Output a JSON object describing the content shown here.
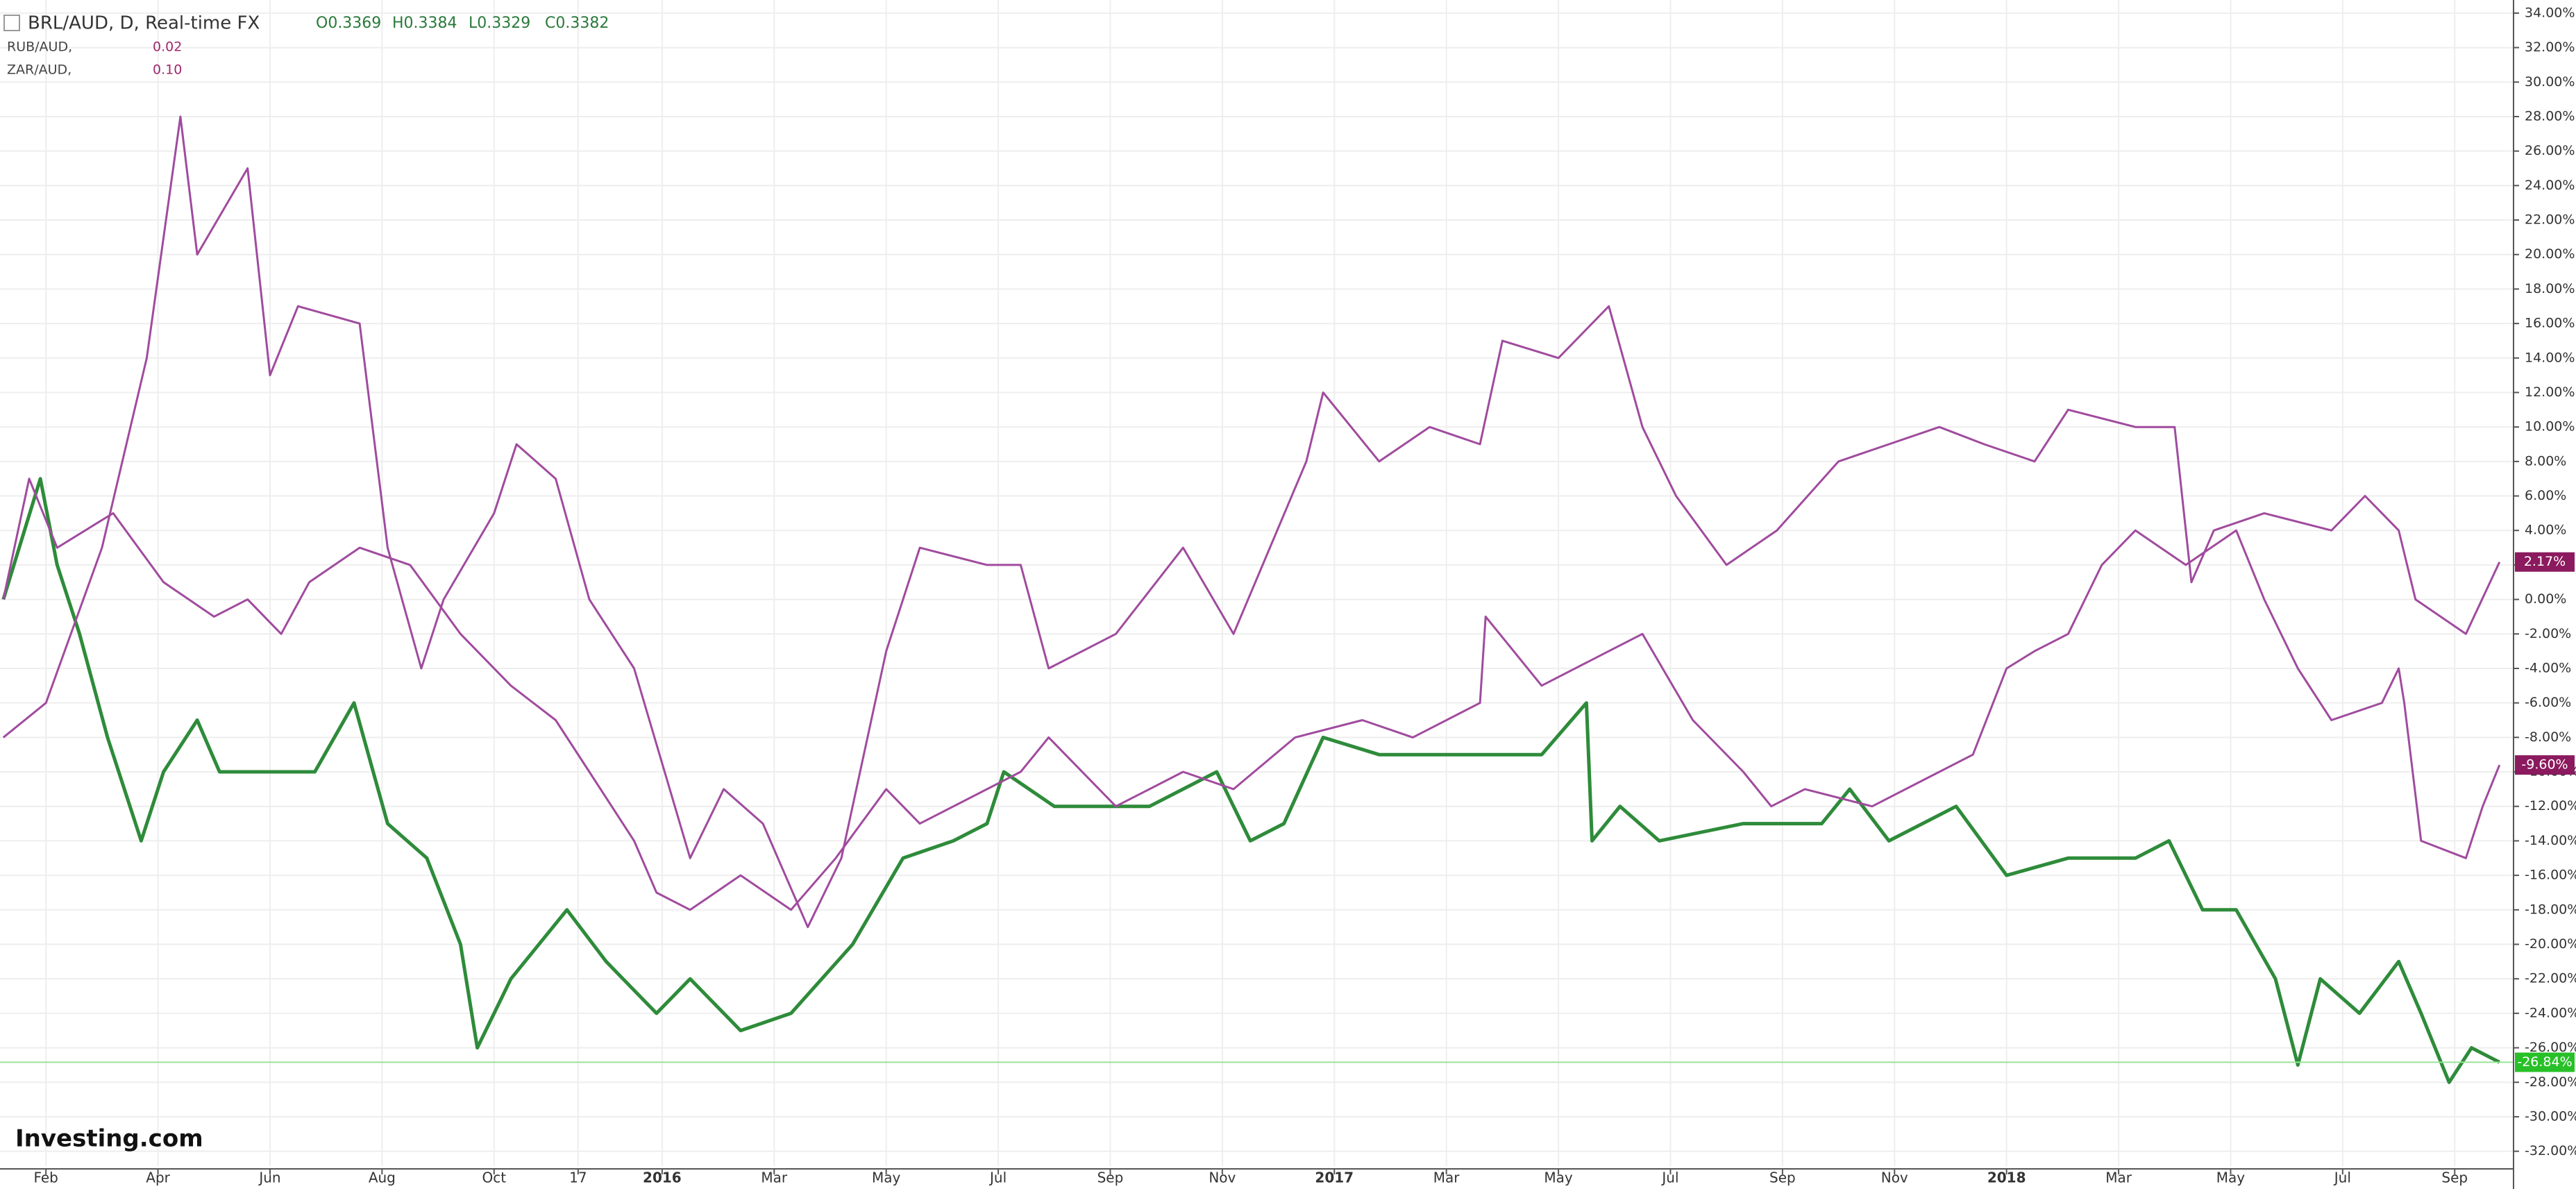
{
  "chart_data": {
    "type": "line",
    "title": "BRL/AUD, D, Real-time FX",
    "ohlc": [
      "O0.3369",
      "H0.3384",
      "L0.3329",
      "C0.3382"
    ],
    "logo": "Investing.com",
    "xlim": [
      0.18,
      45.05
    ],
    "xticks": [
      {
        "value": 1,
        "label": "Feb"
      },
      {
        "value": 3,
        "label": "Apr"
      },
      {
        "value": 5,
        "label": "Jun"
      },
      {
        "value": 7,
        "label": "Aug"
      },
      {
        "value": 9,
        "label": "Oct"
      },
      {
        "value": 10.5,
        "label": "17"
      },
      {
        "value": 12,
        "label": "2016"
      },
      {
        "value": 14,
        "label": "Mar"
      },
      {
        "value": 16,
        "label": "May"
      },
      {
        "value": 18,
        "label": "Jul"
      },
      {
        "value": 20,
        "label": "Sep"
      },
      {
        "value": 22,
        "label": "Nov"
      },
      {
        "value": 24,
        "label": "2017"
      },
      {
        "value": 26,
        "label": "Mar"
      },
      {
        "value": 28,
        "label": "May"
      },
      {
        "value": 30,
        "label": "Jul"
      },
      {
        "value": 32,
        "label": "Sep"
      },
      {
        "value": 34,
        "label": "Nov"
      },
      {
        "value": 36,
        "label": "2018"
      },
      {
        "value": 38,
        "label": "Mar"
      },
      {
        "value": 40,
        "label": "May"
      },
      {
        "value": 42,
        "label": "Jul"
      },
      {
        "value": 44,
        "label": "Sep"
      }
    ],
    "ylim": [
      -32.86,
      34.76
    ],
    "yticks": [
      {
        "value": -32,
        "label": "-32.00%"
      },
      {
        "value": -30,
        "label": "-30.00%"
      },
      {
        "value": -28,
        "label": "-28.00%"
      },
      {
        "value": -26,
        "label": "-26.00%"
      },
      {
        "value": -24,
        "label": "-24.00%"
      },
      {
        "value": -22,
        "label": "-22.00%"
      },
      {
        "value": -20,
        "label": "-20.00%"
      },
      {
        "value": -18,
        "label": "-18.00%"
      },
      {
        "value": -16,
        "label": "-16.00%"
      },
      {
        "value": -14,
        "label": "-14.00%"
      },
      {
        "value": -12,
        "label": "-12.00%"
      },
      {
        "value": -10,
        "label": "-10.00%"
      },
      {
        "value": -8,
        "label": "-8.00%"
      },
      {
        "value": -6,
        "label": "-6.00%"
      },
      {
        "value": -4,
        "label": "-4.00%"
      },
      {
        "value": -2,
        "label": "-2.00%"
      },
      {
        "value": 0,
        "label": "0.00%"
      },
      {
        "value": 2,
        "label": "2.00%"
      },
      {
        "value": 4,
        "label": "4.00%"
      },
      {
        "value": 6,
        "label": "6.00%"
      },
      {
        "value": 8,
        "label": "8.00%"
      },
      {
        "value": 10,
        "label": "10.00%"
      },
      {
        "value": 12,
        "label": "12.00%"
      },
      {
        "value": 14,
        "label": "14.00%"
      },
      {
        "value": 16,
        "label": "16.00%"
      },
      {
        "value": 18,
        "label": "18.00%"
      },
      {
        "value": 20,
        "label": "20.00%"
      },
      {
        "value": 22,
        "label": "22.00%"
      },
      {
        "value": 24,
        "label": "24.00%"
      },
      {
        "value": 26,
        "label": "26.00%"
      },
      {
        "value": 28,
        "label": "28.00%"
      },
      {
        "value": 30,
        "label": "30.00%"
      },
      {
        "value": 32,
        "label": "32.00%"
      },
      {
        "value": 34,
        "label": "34.00%"
      }
    ],
    "grid": true,
    "series": [
      {
        "name": "BRL/AUD",
        "color": "#2e8b3a",
        "x": [
          0.24,
          0.9,
          1.2,
          1.6,
          2.1,
          2.7,
          3.1,
          3.7,
          4.1,
          4.9,
          5.8,
          6.5,
          7.1,
          7.8,
          8.4,
          8.7,
          9.3,
          10.3,
          11.0,
          11.9,
          12.5,
          13.4,
          14.3,
          15.4,
          16.3,
          17.2,
          17.8,
          18.1,
          19.0,
          20.7,
          21.9,
          22.5,
          23.1,
          23.8,
          24.8,
          26.6,
          27.7,
          28.5,
          28.6,
          29.1,
          29.8,
          31.3,
          32.7,
          33.2,
          33.9,
          35.1,
          36.0,
          37.1,
          38.3,
          38.9,
          39.5,
          40.1,
          40.8,
          41.2,
          41.6,
          42.3,
          43.0,
          43.4,
          43.9,
          44.3,
          44.8
        ],
        "values": [
          0,
          7,
          2,
          -2,
          -8,
          -14,
          -10,
          -7,
          -10,
          -10,
          -10,
          -6,
          -13,
          -15,
          -20,
          -26,
          -22,
          -18,
          -21,
          -24,
          -22,
          -25,
          -24,
          -20,
          -15,
          -14,
          -13,
          -10,
          -12,
          -12,
          -10,
          -14,
          -13,
          -8,
          -9,
          -9,
          -9,
          -6,
          -14,
          -12,
          -14,
          -13,
          -13,
          -11,
          -14,
          -12,
          -16,
          -15,
          -15,
          -14,
          -18,
          -18,
          -22,
          -27,
          -22,
          -24,
          -21,
          -24,
          -28,
          -26,
          -26.84
        ],
        "last_value": {
          "value": -26.84,
          "label": "-26.84%"
        }
      },
      {
        "name": "RUB/AUD,",
        "color": "#a04b9e",
        "change": "0.02",
        "x": [
          0.24,
          0.7,
          1.2,
          2.2,
          3.1,
          4.0,
          4.6,
          5.2,
          5.7,
          6.6,
          7.5,
          8.4,
          9.3,
          10.1,
          10.7,
          11.5,
          11.9,
          12.5,
          13.4,
          14.3,
          15.1,
          16.0,
          16.6,
          18.4,
          18.9,
          20.1,
          21.3,
          22.2,
          23.3,
          24.5,
          25.4,
          26.6,
          26.7,
          27.7,
          28.9,
          29.5,
          30.4,
          31.3,
          31.8,
          32.4,
          33.6,
          34.8,
          35.4,
          36.0,
          36.5,
          37.1,
          37.7,
          38.3,
          39.2,
          40.1,
          40.6,
          41.2,
          41.8,
          42.7,
          43.0,
          43.1,
          43.4,
          44.2,
          44.5,
          44.8
        ],
        "values": [
          0,
          7,
          3,
          5,
          1,
          -1,
          0,
          -2,
          1,
          3,
          2,
          -2,
          -5,
          -7,
          -10,
          -14,
          -17,
          -18,
          -16,
          -18,
          -15,
          -11,
          -13,
          -10,
          -8,
          -12,
          -10,
          -11,
          -8,
          -7,
          -8,
          -6,
          -1,
          -5,
          -3,
          -2,
          -7,
          -10,
          -12,
          -11,
          -12,
          -10,
          -9,
          -4,
          -3,
          -2,
          2,
          4,
          2,
          4,
          0,
          -4,
          -7,
          -6,
          -4,
          -6,
          -14,
          -15,
          -12,
          -9.6
        ],
        "last_value": {
          "value": -9.6,
          "label": "-9.60%"
        }
      },
      {
        "name": "ZAR/AUD,",
        "color": "#a04b9e",
        "change": "0.10",
        "x": [
          0.24,
          1.0,
          2.0,
          2.8,
          3.4,
          3.7,
          4.6,
          5.0,
          5.5,
          6.6,
          7.1,
          7.7,
          8.1,
          9.0,
          9.4,
          10.1,
          10.7,
          11.5,
          12.5,
          13.1,
          13.8,
          14.6,
          15.2,
          15.6,
          16.0,
          16.6,
          17.8,
          18.4,
          18.9,
          20.1,
          21.3,
          22.2,
          23.5,
          23.8,
          24.8,
          25.7,
          26.6,
          27.0,
          28.0,
          28.9,
          29.5,
          30.1,
          31.0,
          31.9,
          33.0,
          33.9,
          34.8,
          35.6,
          36.5,
          37.1,
          38.3,
          39.0,
          39.3,
          39.7,
          40.6,
          41.8,
          42.4,
          43.0,
          43.3,
          44.2,
          44.8
        ],
        "values": [
          -8,
          -6,
          3,
          14,
          28,
          20,
          25,
          13,
          17,
          16,
          3,
          -4,
          0,
          5,
          9,
          7,
          0,
          -4,
          -15,
          -11,
          -13,
          -19,
          -15,
          -9,
          -3,
          3,
          2,
          2,
          -4,
          -2,
          3,
          -2,
          8,
          12,
          8,
          10,
          9,
          15,
          14,
          17,
          10,
          6,
          2,
          4,
          8,
          9,
          10,
          9,
          8,
          11,
          10,
          10,
          1,
          4,
          5,
          4,
          6,
          4,
          0,
          -2,
          2.17
        ],
        "last_value": {
          "value": 2.17,
          "label": "2.17%"
        }
      }
    ]
  }
}
